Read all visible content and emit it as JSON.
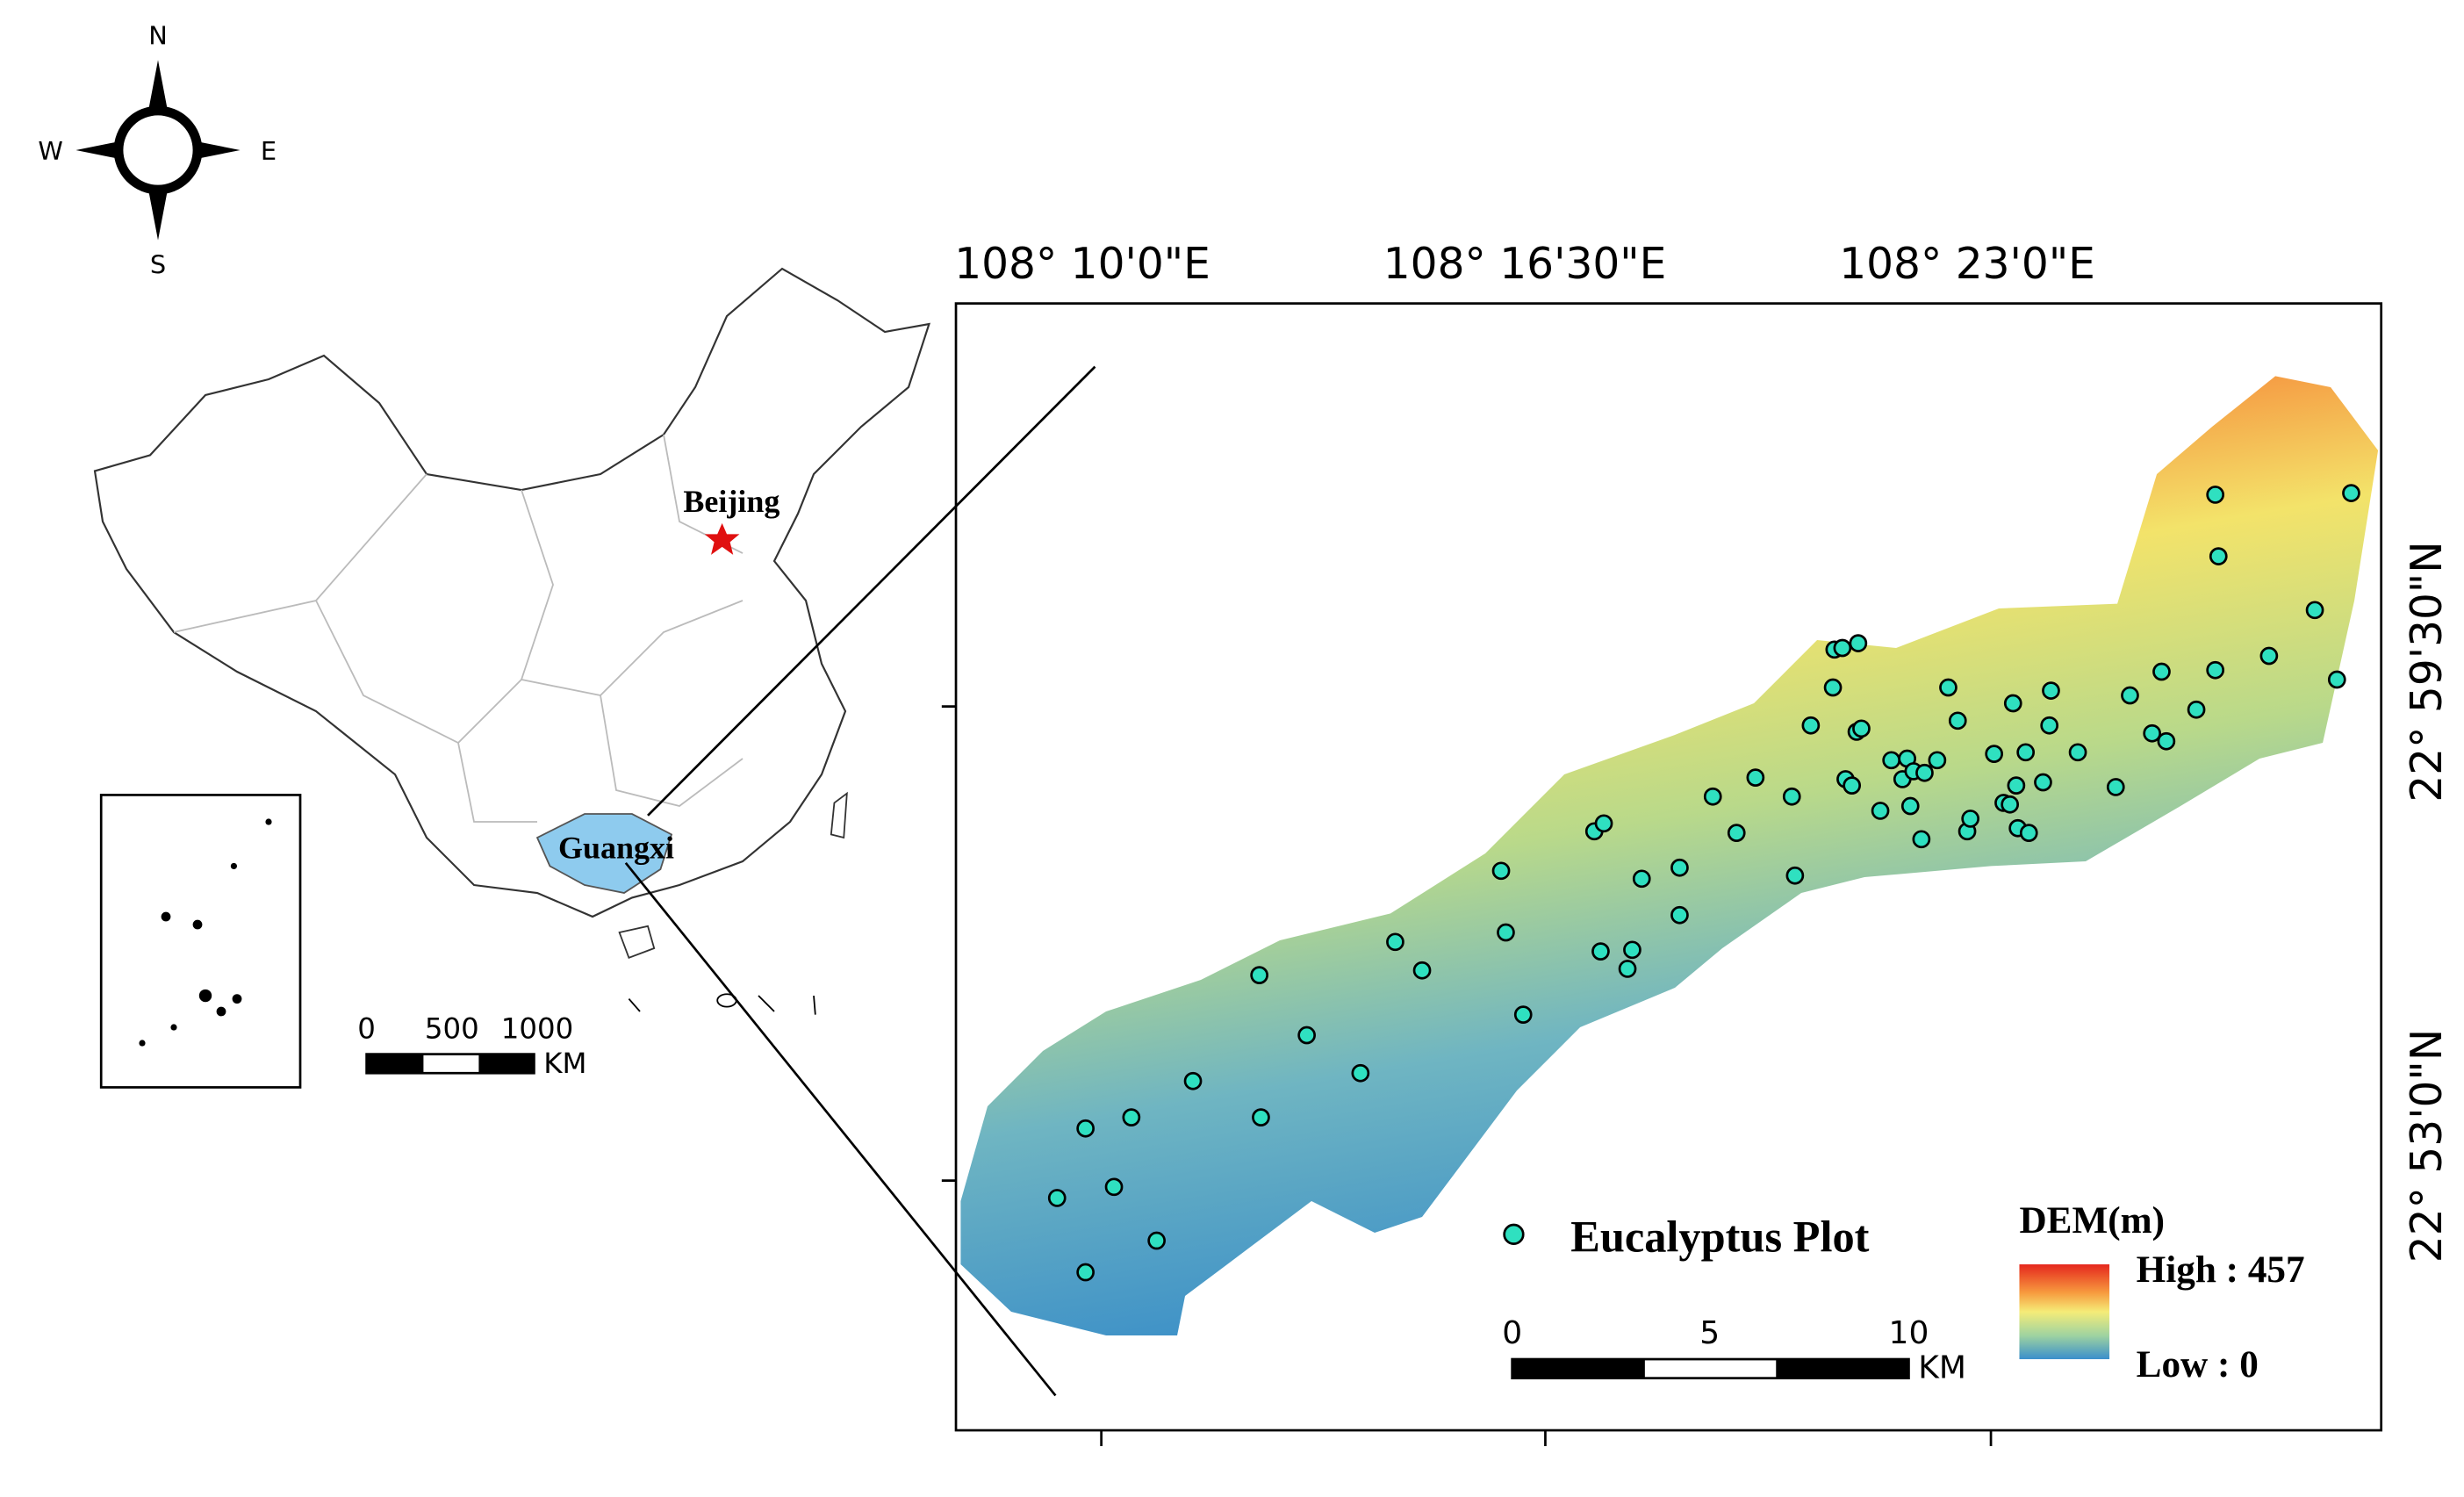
{
  "compass": {
    "north": "N",
    "south": "S",
    "west": "W",
    "east": "E"
  },
  "overview_map": {
    "capital_label": "Beijing",
    "province_label": "Guangxi",
    "scale_bar": {
      "labels": [
        "0",
        "500",
        "1000"
      ],
      "unit": "KM"
    }
  },
  "study_area_map": {
    "longitude_labels": [
      "108°  10'0\"E",
      "108°  16'30\"E",
      "108°  23'0\"E"
    ],
    "latitude_labels": [
      "22°  59'30\"N",
      "22°  53'0\"N"
    ],
    "legend": {
      "plot_label": "Eucalyptus Plot",
      "dem_title": "DEM(m)",
      "dem_high": "High : 457",
      "dem_low": "Low : 0"
    },
    "scale_bar": {
      "labels": [
        "0",
        "5",
        "10"
      ],
      "unit": "KM"
    }
  }
}
